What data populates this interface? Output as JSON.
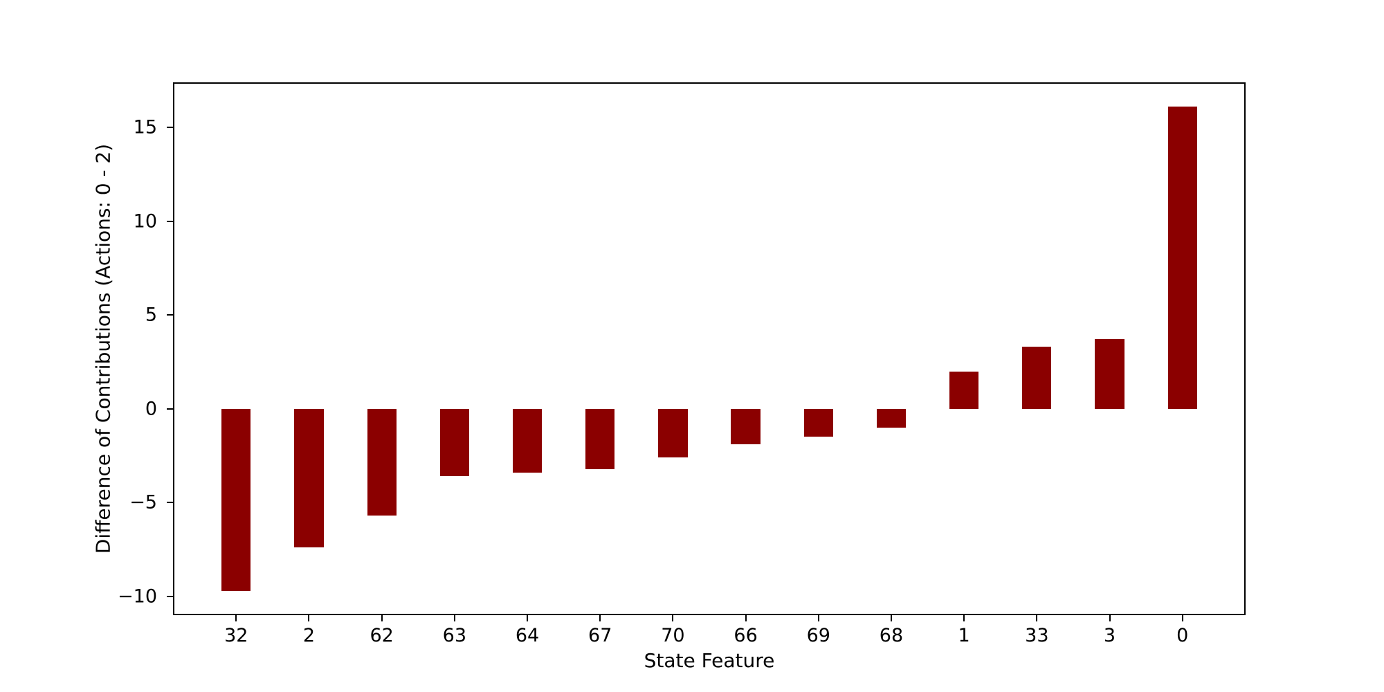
{
  "figure": {
    "background_color": "#ffffff",
    "spine_color": "#000000",
    "xlabel": "State Feature",
    "ylabel": "Difference of Contributions (Actions: 0 - 2)"
  },
  "chart_data": {
    "type": "bar",
    "title": "",
    "xlabel": "State Feature",
    "ylabel": "Difference of Contributions (Actions: 0 - 2)",
    "categories": [
      "32",
      "2",
      "62",
      "63",
      "64",
      "67",
      "70",
      "66",
      "69",
      "68",
      "1",
      "33",
      "3",
      "0"
    ],
    "values": [
      -9.7,
      -7.4,
      -5.7,
      -3.6,
      -3.4,
      -3.2,
      -2.6,
      -1.9,
      -1.5,
      -1.0,
      2.0,
      3.3,
      3.7,
      16.1
    ],
    "bar_color": "#8B0000",
    "ylim": [
      -11.0,
      17.4
    ],
    "yticks": [
      15,
      10,
      5,
      0,
      -5,
      -10
    ],
    "ytick_labels": [
      "15",
      "10",
      "5",
      "0",
      "−5",
      "−10"
    ],
    "grid": false,
    "legend_position": "none"
  }
}
